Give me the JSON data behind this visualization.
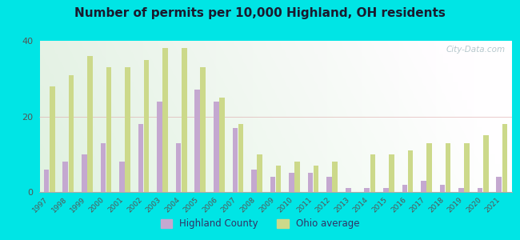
{
  "title": "Number of permits per 10,000 Highland, OH residents",
  "years": [
    1997,
    1998,
    1999,
    2000,
    2001,
    2002,
    2003,
    2004,
    2005,
    2006,
    2007,
    2008,
    2009,
    2010,
    2011,
    2012,
    2013,
    2014,
    2015,
    2016,
    2017,
    2018,
    2019,
    2020,
    2021
  ],
  "highland": [
    6,
    8,
    10,
    13,
    8,
    18,
    24,
    13,
    27,
    24,
    17,
    6,
    4,
    5,
    5,
    4,
    1,
    1,
    1,
    2,
    3,
    2,
    1,
    1,
    4
  ],
  "ohio": [
    28,
    31,
    36,
    33,
    33,
    35,
    38,
    38,
    33,
    25,
    18,
    10,
    7,
    8,
    7,
    8,
    0,
    10,
    10,
    11,
    13,
    13,
    13,
    15,
    18
  ],
  "highland_color": "#c4a8d0",
  "ohio_color": "#ccd98a",
  "background_outer": "#00e5e5",
  "title_color": "#1a1a2e",
  "ylim": [
    0,
    40
  ],
  "yticks": [
    0,
    20,
    40
  ],
  "watermark": "City-Data.com",
  "legend_highland": "Highland County",
  "legend_ohio": "Ohio average",
  "bar_width": 0.28
}
